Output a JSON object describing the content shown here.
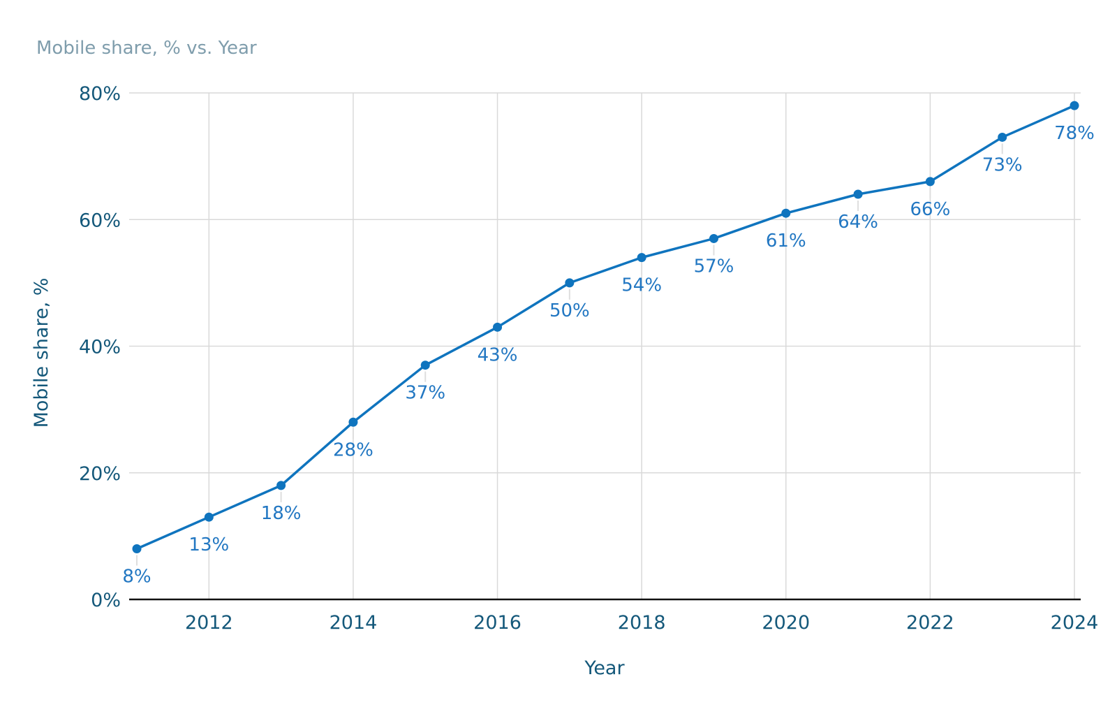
{
  "chart_data": {
    "type": "line",
    "title": "Mobile share, % vs. Year",
    "xlabel": "Year",
    "ylabel": "Mobile share, %",
    "series_name": "Mobile share, %",
    "x": [
      2011,
      2012,
      2013,
      2014,
      2015,
      2016,
      2017,
      2018,
      2019,
      2020,
      2021,
      2022,
      2023,
      2024
    ],
    "y": [
      8,
      13,
      18,
      28,
      37,
      43,
      50,
      54,
      57,
      61,
      64,
      66,
      73,
      78
    ],
    "point_labels": [
      "8%",
      "13%",
      "18%",
      "28%",
      "37%",
      "43%",
      "50%",
      "54%",
      "57%",
      "61%",
      "64%",
      "66%",
      "73%",
      "78%"
    ],
    "x_tick_values": [
      2012,
      2014,
      2016,
      2018,
      2020,
      2022,
      2024
    ],
    "x_tick_labels": [
      "2012",
      "2014",
      "2016",
      "2018",
      "2020",
      "2022",
      "2024"
    ],
    "y_tick_values": [
      0,
      20,
      40,
      60,
      80
    ],
    "y_tick_labels": [
      "0%",
      "20%",
      "40%",
      "60%",
      "80%"
    ],
    "xlim": [
      2011,
      2024
    ],
    "ylim": [
      0,
      80
    ],
    "grid": true,
    "legend": false,
    "colors": {
      "line": "#0f74be",
      "marker": "#0f74be",
      "point_label": "#2277c2",
      "tick_label": "#14587a",
      "axis_title": "#14587a",
      "title": "#7f9dac",
      "gridline": "#d9d9d9",
      "leader_line": "#dedede",
      "axis_line": "#111111",
      "background": "#ffffff"
    }
  }
}
